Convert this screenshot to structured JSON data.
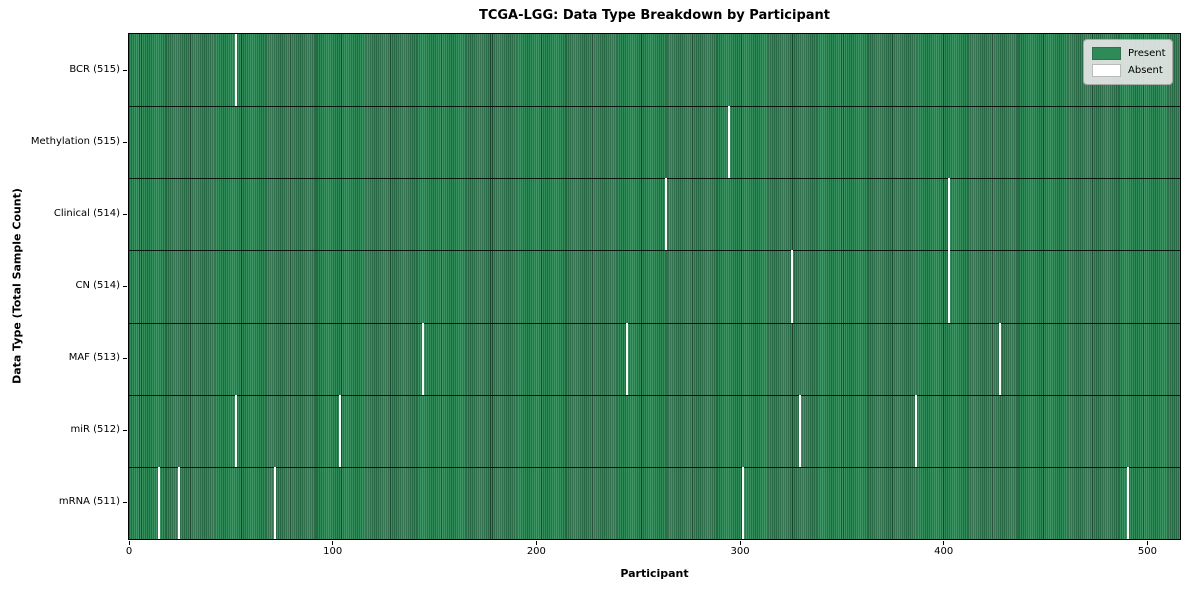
{
  "chart_data": {
    "type": "heatmap",
    "title": "TCGA-LGG: Data Type Breakdown by Participant",
    "xlabel": "Participant",
    "ylabel": "Data Type (Total Sample Count)",
    "x_ticks": [
      0,
      100,
      200,
      300,
      400,
      500
    ],
    "x_range": [
      0,
      516
    ],
    "n_participants": 516,
    "present_color": "#2e8b57",
    "absent_color": "#ffffff",
    "grid": false,
    "rows": [
      {
        "label": "BCR (515)",
        "data_type": "BCR",
        "present_count": 515,
        "absent_participants": [
          52
        ]
      },
      {
        "label": "Methylation (515)",
        "data_type": "Methylation",
        "present_count": 515,
        "absent_participants": [
          294
        ]
      },
      {
        "label": "Clinical (514)",
        "data_type": "Clinical",
        "present_count": 514,
        "absent_participants": [
          263,
          402
        ]
      },
      {
        "label": "CN (514)",
        "data_type": "CN",
        "present_count": 514,
        "absent_participants": [
          325,
          402
        ]
      },
      {
        "label": "MAF (513)",
        "data_type": "MAF",
        "present_count": 513,
        "absent_participants": [
          144,
          244,
          427
        ]
      },
      {
        "label": "miR (512)",
        "data_type": "miR",
        "present_count": 512,
        "absent_participants": [
          52,
          103,
          329,
          386
        ]
      },
      {
        "label": "mRNA (511)",
        "data_type": "mRNA",
        "present_count": 511,
        "absent_participants": [
          14,
          24,
          71,
          301,
          490
        ]
      }
    ],
    "legend": {
      "position": "upper right",
      "entries": [
        {
          "label": "Present",
          "color": "#2e8b57"
        },
        {
          "label": "Absent",
          "color": "#ffffff"
        }
      ]
    }
  }
}
